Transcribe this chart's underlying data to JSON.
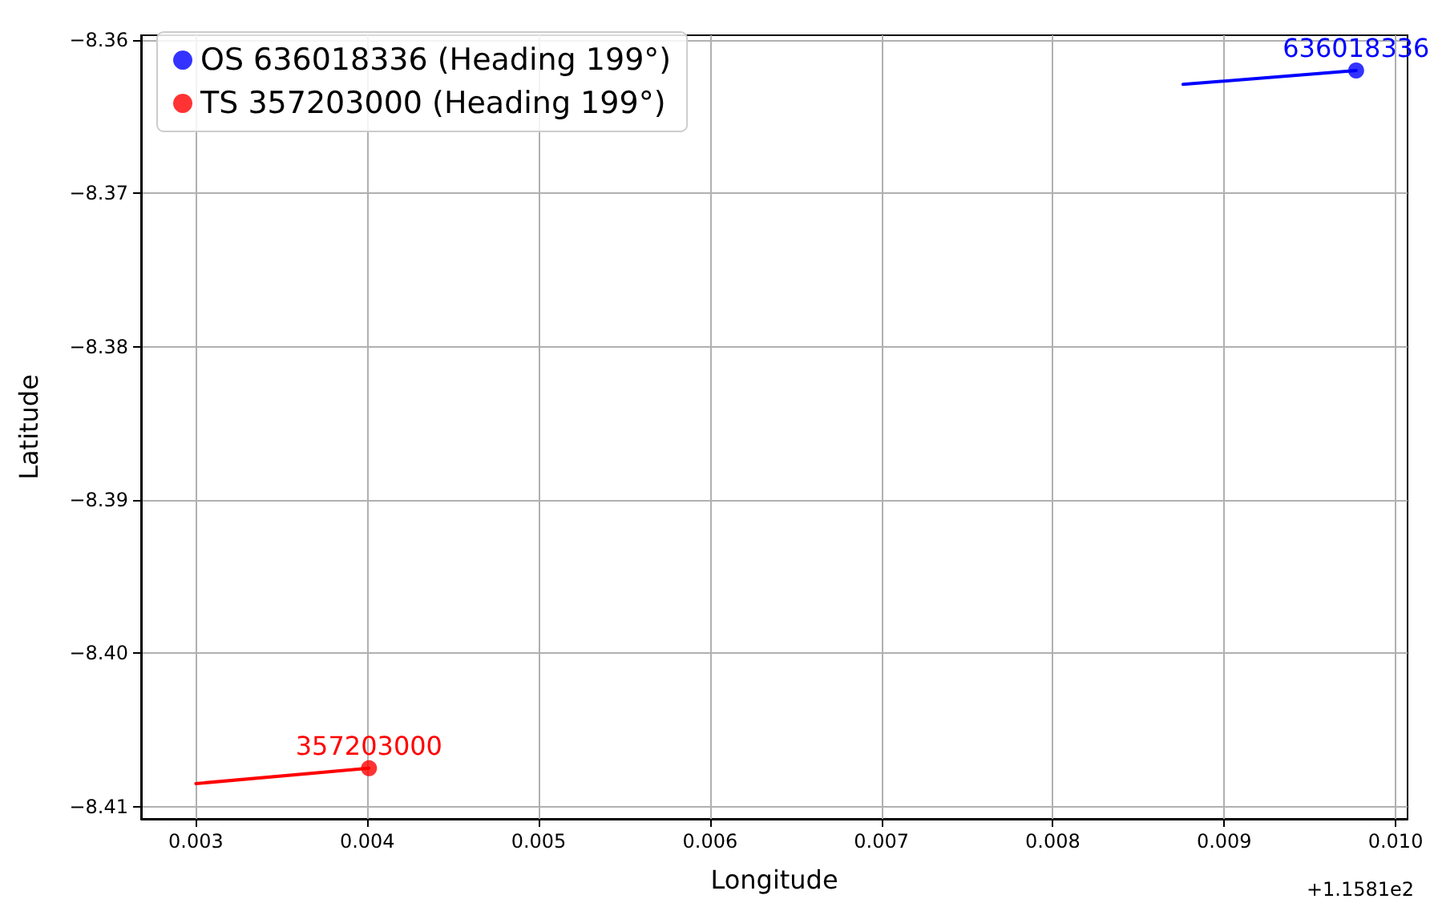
{
  "chart_data": {
    "type": "scatter",
    "xlabel": "Longitude",
    "ylabel": "Latitude",
    "xlim": [
      0.00268,
      0.01007
    ],
    "ylim": [
      -8.4108,
      -8.3597
    ],
    "xticks": [
      0.003,
      0.004,
      0.005,
      0.006,
      0.007,
      0.008,
      0.009,
      {
        "value": 0.01,
        "label": "0.010"
      }
    ],
    "yticks": [
      {
        "value": -8.41,
        "label": "−8.41"
      },
      {
        "value": -8.4,
        "label": "−8.40"
      },
      {
        "value": -8.39,
        "label": "−8.39"
      },
      {
        "value": -8.38,
        "label": "−8.38"
      },
      {
        "value": -8.37,
        "label": "−8.37"
      },
      {
        "value": -8.36,
        "label": "−8.36"
      }
    ],
    "series": [
      {
        "type": "line",
        "color": "#0000ff",
        "x": [
          0.00876,
          0.00977
        ],
        "values": [
          -8.3629,
          -8.362
        ],
        "marker": "none",
        "line_style": "solid"
      },
      {
        "type": "line",
        "color": "#ff0000",
        "x": [
          0.003,
          0.00401
        ],
        "values": [
          -8.4085,
          -8.4075
        ],
        "marker": "none",
        "line_style": "solid"
      },
      {
        "name": "OS 636018336 (Heading 199°)",
        "color": "#0000ff",
        "x": [
          0.00977
        ],
        "values": [
          -8.362
        ],
        "marker": "circle"
      },
      {
        "name": "TS 357203000 (Heading 199°)",
        "color": "#ff0000",
        "x": [
          0.00401
        ],
        "values": [
          -8.4075
        ],
        "marker": "circle"
      }
    ],
    "annotations": [
      {
        "text": "636018336",
        "x": 0.00977,
        "y": -8.362
      },
      {
        "text": "357203000",
        "x": 0.00401,
        "y": -8.4075
      },
      "+1.1581e2"
    ],
    "grid": true,
    "legend": "top left"
  }
}
